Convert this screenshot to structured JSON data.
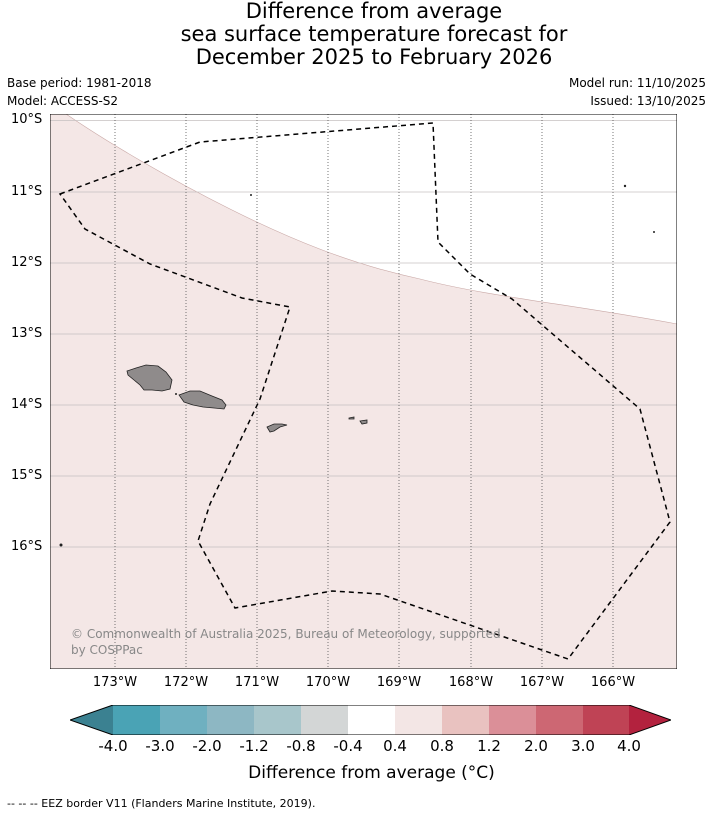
{
  "title": {
    "line1": "Difference from average",
    "line2": "sea surface temperature forecast for",
    "line3": "December 2025 to February 2026"
  },
  "meta": {
    "base_period": "Base period: 1981-2018",
    "model": "Model: ACCESS-S2",
    "model_run": "Model run: 11/10/2025",
    "issued": "Issued: 13/10/2025"
  },
  "axes": {
    "lat_labels": [
      "10°S",
      "11°S",
      "12°S",
      "13°S",
      "14°S",
      "15°S",
      "16°S"
    ],
    "lon_labels": [
      "173°W",
      "172°W",
      "171°W",
      "170°W",
      "169°W",
      "168°W",
      "167°W",
      "166°W"
    ]
  },
  "copyright": {
    "line1": "© Commonwealth of Australia 2025, Bureau of Meteorology, supported",
    "line2": "by COSPPac"
  },
  "colorbar": {
    "ticks": [
      "-4.0",
      "-3.0",
      "-2.0",
      "-1.2",
      "-0.8",
      "-0.4",
      "0.4",
      "0.8",
      "1.2",
      "2.0",
      "3.0",
      "4.0"
    ],
    "colors": [
      "#3b8191",
      "#4aa3b5",
      "#6fb0c0",
      "#8db7c3",
      "#a8c6cb",
      "#d3d6d6",
      "#ffffff",
      "#f3e6e5",
      "#e9c2c0",
      "#db8f98",
      "#cd6773",
      "#bf4355",
      "#b3223e"
    ],
    "label": "Difference from average (°C)"
  },
  "map": {
    "fill_color": "#f4e7e6",
    "land_color": "#8f8b8b"
  },
  "footer": "--  --  -- EEZ border V11 (Flanders Marine Institute, 2019)."
}
